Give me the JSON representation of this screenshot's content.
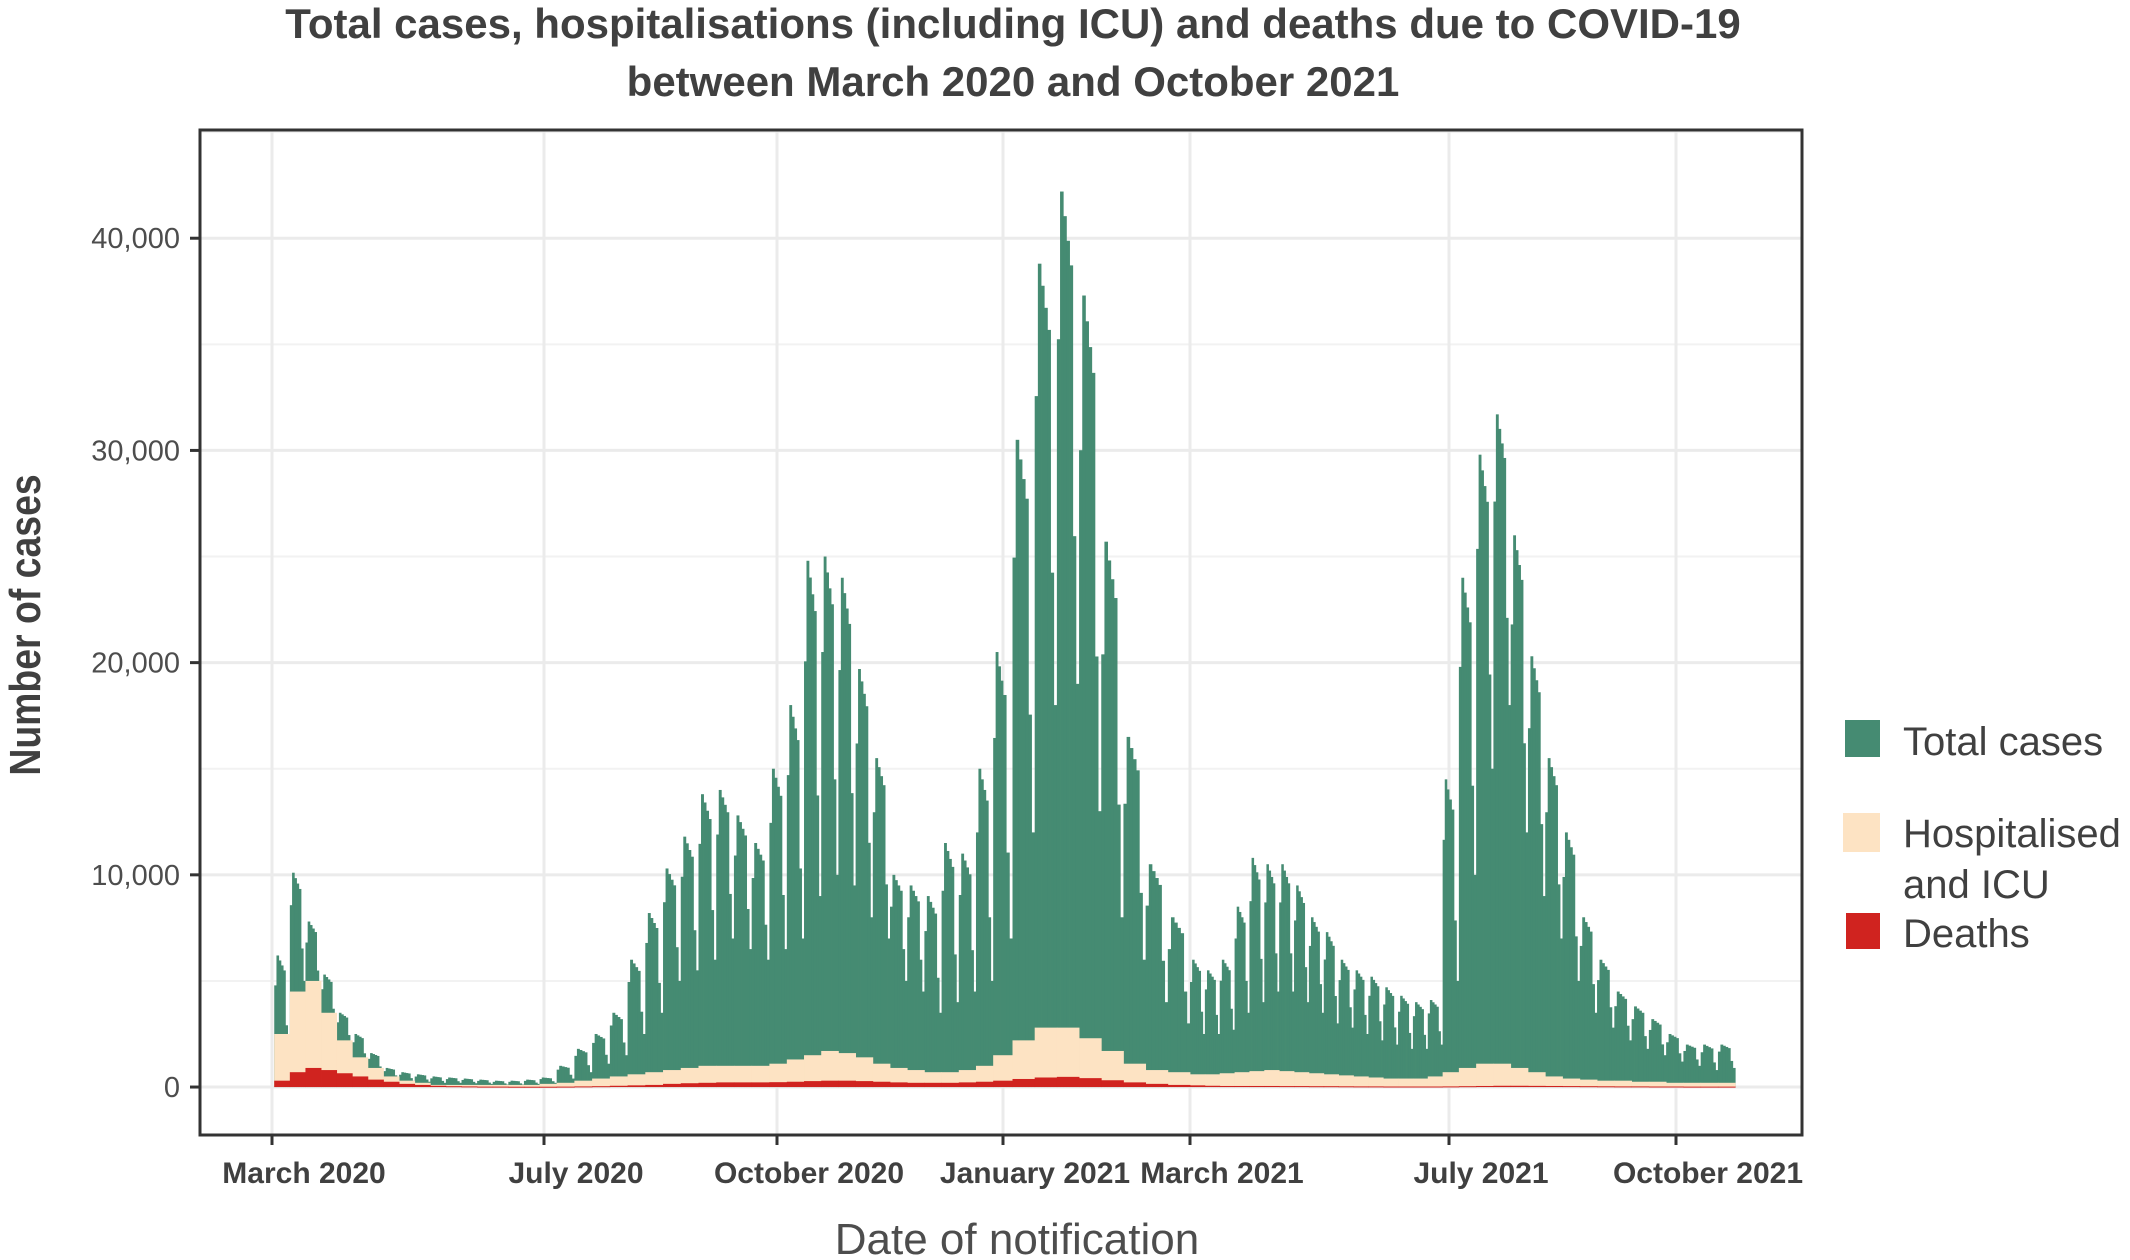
{
  "chart_data": {
    "type": "bar",
    "title_lines": [
      "Total cases, hospitalisations (including ICU) and deaths due to COVID-19",
      "between March 2020 and October 2021"
    ],
    "xlabel": "Date of notification",
    "ylabel": "Number of cases",
    "ylim": [
      -2260,
      45100
    ],
    "grid": true,
    "legend_position": "right",
    "y_ticks": [
      {
        "value": 0,
        "label": "0"
      },
      {
        "value": 10000,
        "label": "10,000"
      },
      {
        "value": 20000,
        "label": "20,000"
      },
      {
        "value": 30000,
        "label": "30,000"
      },
      {
        "value": 40000,
        "label": "40,000"
      }
    ],
    "x_ticks": [
      {
        "date": "2020-03-01",
        "label": "March 2020"
      },
      {
        "date": "2020-07-01",
        "label": "July 2020"
      },
      {
        "date": "2020-10-01",
        "label": "October 2020"
      },
      {
        "date": "2021-01-01",
        "label": "January 2021"
      },
      {
        "date": "2021-03-01",
        "label": "March 2021"
      },
      {
        "date": "2021-07-01",
        "label": "July 2021"
      },
      {
        "date": "2021-10-01",
        "label": "October 2021"
      }
    ],
    "x_week_start": [
      "2020-03-02",
      "2020-03-09",
      "2020-03-16",
      "2020-03-23",
      "2020-03-30",
      "2020-04-06",
      "2020-04-13",
      "2020-04-20",
      "2020-04-27",
      "2020-05-04",
      "2020-05-11",
      "2020-05-18",
      "2020-05-25",
      "2020-06-01",
      "2020-06-08",
      "2020-06-15",
      "2020-06-22",
      "2020-06-29",
      "2020-07-06",
      "2020-07-13",
      "2020-07-20",
      "2020-07-27",
      "2020-08-03",
      "2020-08-10",
      "2020-08-17",
      "2020-08-24",
      "2020-08-31",
      "2020-09-07",
      "2020-09-14",
      "2020-09-21",
      "2020-09-28",
      "2020-10-05",
      "2020-10-12",
      "2020-10-19",
      "2020-10-26",
      "2020-11-02",
      "2020-11-09",
      "2020-11-16",
      "2020-11-23",
      "2020-11-30",
      "2020-12-07",
      "2020-12-14",
      "2020-12-21",
      "2020-12-28",
      "2021-01-04",
      "2021-01-11",
      "2021-01-18",
      "2021-01-25",
      "2021-02-01",
      "2021-02-08",
      "2021-02-15",
      "2021-02-22",
      "2021-03-01",
      "2021-03-08",
      "2021-03-15",
      "2021-03-22",
      "2021-03-29",
      "2021-04-05",
      "2021-04-12",
      "2021-04-19",
      "2021-04-26",
      "2021-05-03",
      "2021-05-10",
      "2021-05-17",
      "2021-05-24",
      "2021-05-31",
      "2021-06-07",
      "2021-06-14",
      "2021-06-21",
      "2021-06-28",
      "2021-07-05",
      "2021-07-12",
      "2021-07-19",
      "2021-07-26",
      "2021-08-02",
      "2021-08-09",
      "2021-08-16",
      "2021-08-23",
      "2021-08-30",
      "2021-09-06",
      "2021-09-13",
      "2021-09-20",
      "2021-09-27",
      "2021-10-04",
      "2021-10-11",
      "2021-10-18"
    ],
    "series": [
      {
        "name": "Total cases",
        "color": "#458b72",
        "weekly_daily_peak": [
          6200,
          10100,
          7800,
          5300,
          3500,
          2500,
          1600,
          900,
          700,
          600,
          500,
          450,
          400,
          350,
          300,
          300,
          350,
          450,
          1000,
          1800,
          2500,
          3500,
          6000,
          8200,
          10300,
          11800,
          13800,
          14000,
          12800,
          11500,
          15000,
          18000,
          24800,
          25000,
          24000,
          19700,
          15500,
          10000,
          9500,
          9000,
          11500,
          11000,
          15000,
          20500,
          30500,
          38800,
          42200,
          37300,
          25700,
          16500,
          10500,
          8000,
          6000,
          5500,
          6000,
          8500,
          10800,
          10500,
          10500,
          9500,
          8000,
          7300,
          6000,
          5500,
          5200,
          4700,
          4300,
          4000,
          4100,
          14500,
          24000,
          29800,
          31700,
          26000,
          20300,
          15500,
          12000,
          8000,
          6000,
          4500,
          3800,
          3200,
          2500,
          2000,
          2000,
          2000
        ],
        "weekly_daily_low": [
          1500,
          5000,
          4500,
          3000,
          2000,
          1200,
          700,
          400,
          300,
          250,
          200,
          200,
          180,
          150,
          120,
          120,
          150,
          200,
          400,
          700,
          1100,
          1500,
          2500,
          3500,
          5000,
          5500,
          6000,
          7000,
          6500,
          6000,
          6500,
          7000,
          9000,
          10000,
          9500,
          8000,
          7000,
          5000,
          4500,
          3500,
          4000,
          4500,
          5000,
          7000,
          12000,
          18000,
          19000,
          13000,
          8000,
          6000,
          4000,
          3000,
          2500,
          2500,
          2700,
          3500,
          4000,
          4500,
          4500,
          4000,
          3500,
          3000,
          2800,
          2500,
          2200,
          2000,
          1800,
          1800,
          2000,
          5000,
          10000,
          15000,
          18000,
          12000,
          9000,
          7000,
          5000,
          3500,
          2800,
          2200,
          1800,
          1500,
          1200,
          1000,
          800,
          900
        ]
      },
      {
        "name": "Hospitalised and ICU",
        "legend_lines": [
          "Hospitalised",
          "and ICU"
        ],
        "color": "#fde3c3",
        "weekly_daily": [
          2500,
          4500,
          5000,
          3500,
          2200,
          1400,
          900,
          500,
          300,
          200,
          100,
          100,
          100,
          100,
          100,
          100,
          100,
          150,
          200,
          300,
          400,
          500,
          600,
          700,
          800,
          900,
          1000,
          1000,
          1000,
          1000,
          1100,
          1300,
          1500,
          1700,
          1600,
          1400,
          1100,
          900,
          800,
          700,
          700,
          800,
          1000,
          1500,
          2200,
          2800,
          2800,
          2300,
          1700,
          1100,
          800,
          700,
          600,
          600,
          650,
          700,
          750,
          800,
          750,
          700,
          650,
          600,
          550,
          500,
          450,
          400,
          400,
          400,
          500,
          700,
          900,
          1100,
          1100,
          900,
          700,
          500,
          400,
          350,
          300,
          300,
          250,
          250,
          200,
          200,
          200,
          200
        ]
      },
      {
        "name": "Deaths",
        "color": "#d0231f",
        "weekly_daily": [
          300,
          700,
          900,
          800,
          650,
          500,
          350,
          250,
          150,
          100,
          60,
          40,
          30,
          20,
          20,
          15,
          15,
          15,
          20,
          30,
          40,
          60,
          80,
          100,
          150,
          180,
          200,
          220,
          220,
          220,
          230,
          250,
          280,
          300,
          300,
          280,
          250,
          220,
          200,
          200,
          200,
          220,
          250,
          300,
          380,
          450,
          480,
          420,
          320,
          220,
          150,
          100,
          80,
          60,
          50,
          50,
          50,
          50,
          45,
          45,
          40,
          40,
          35,
          30,
          30,
          25,
          25,
          25,
          25,
          30,
          40,
          50,
          60,
          60,
          55,
          50,
          45,
          40,
          35,
          30,
          30,
          25,
          25,
          20,
          20,
          20
        ]
      }
    ]
  }
}
